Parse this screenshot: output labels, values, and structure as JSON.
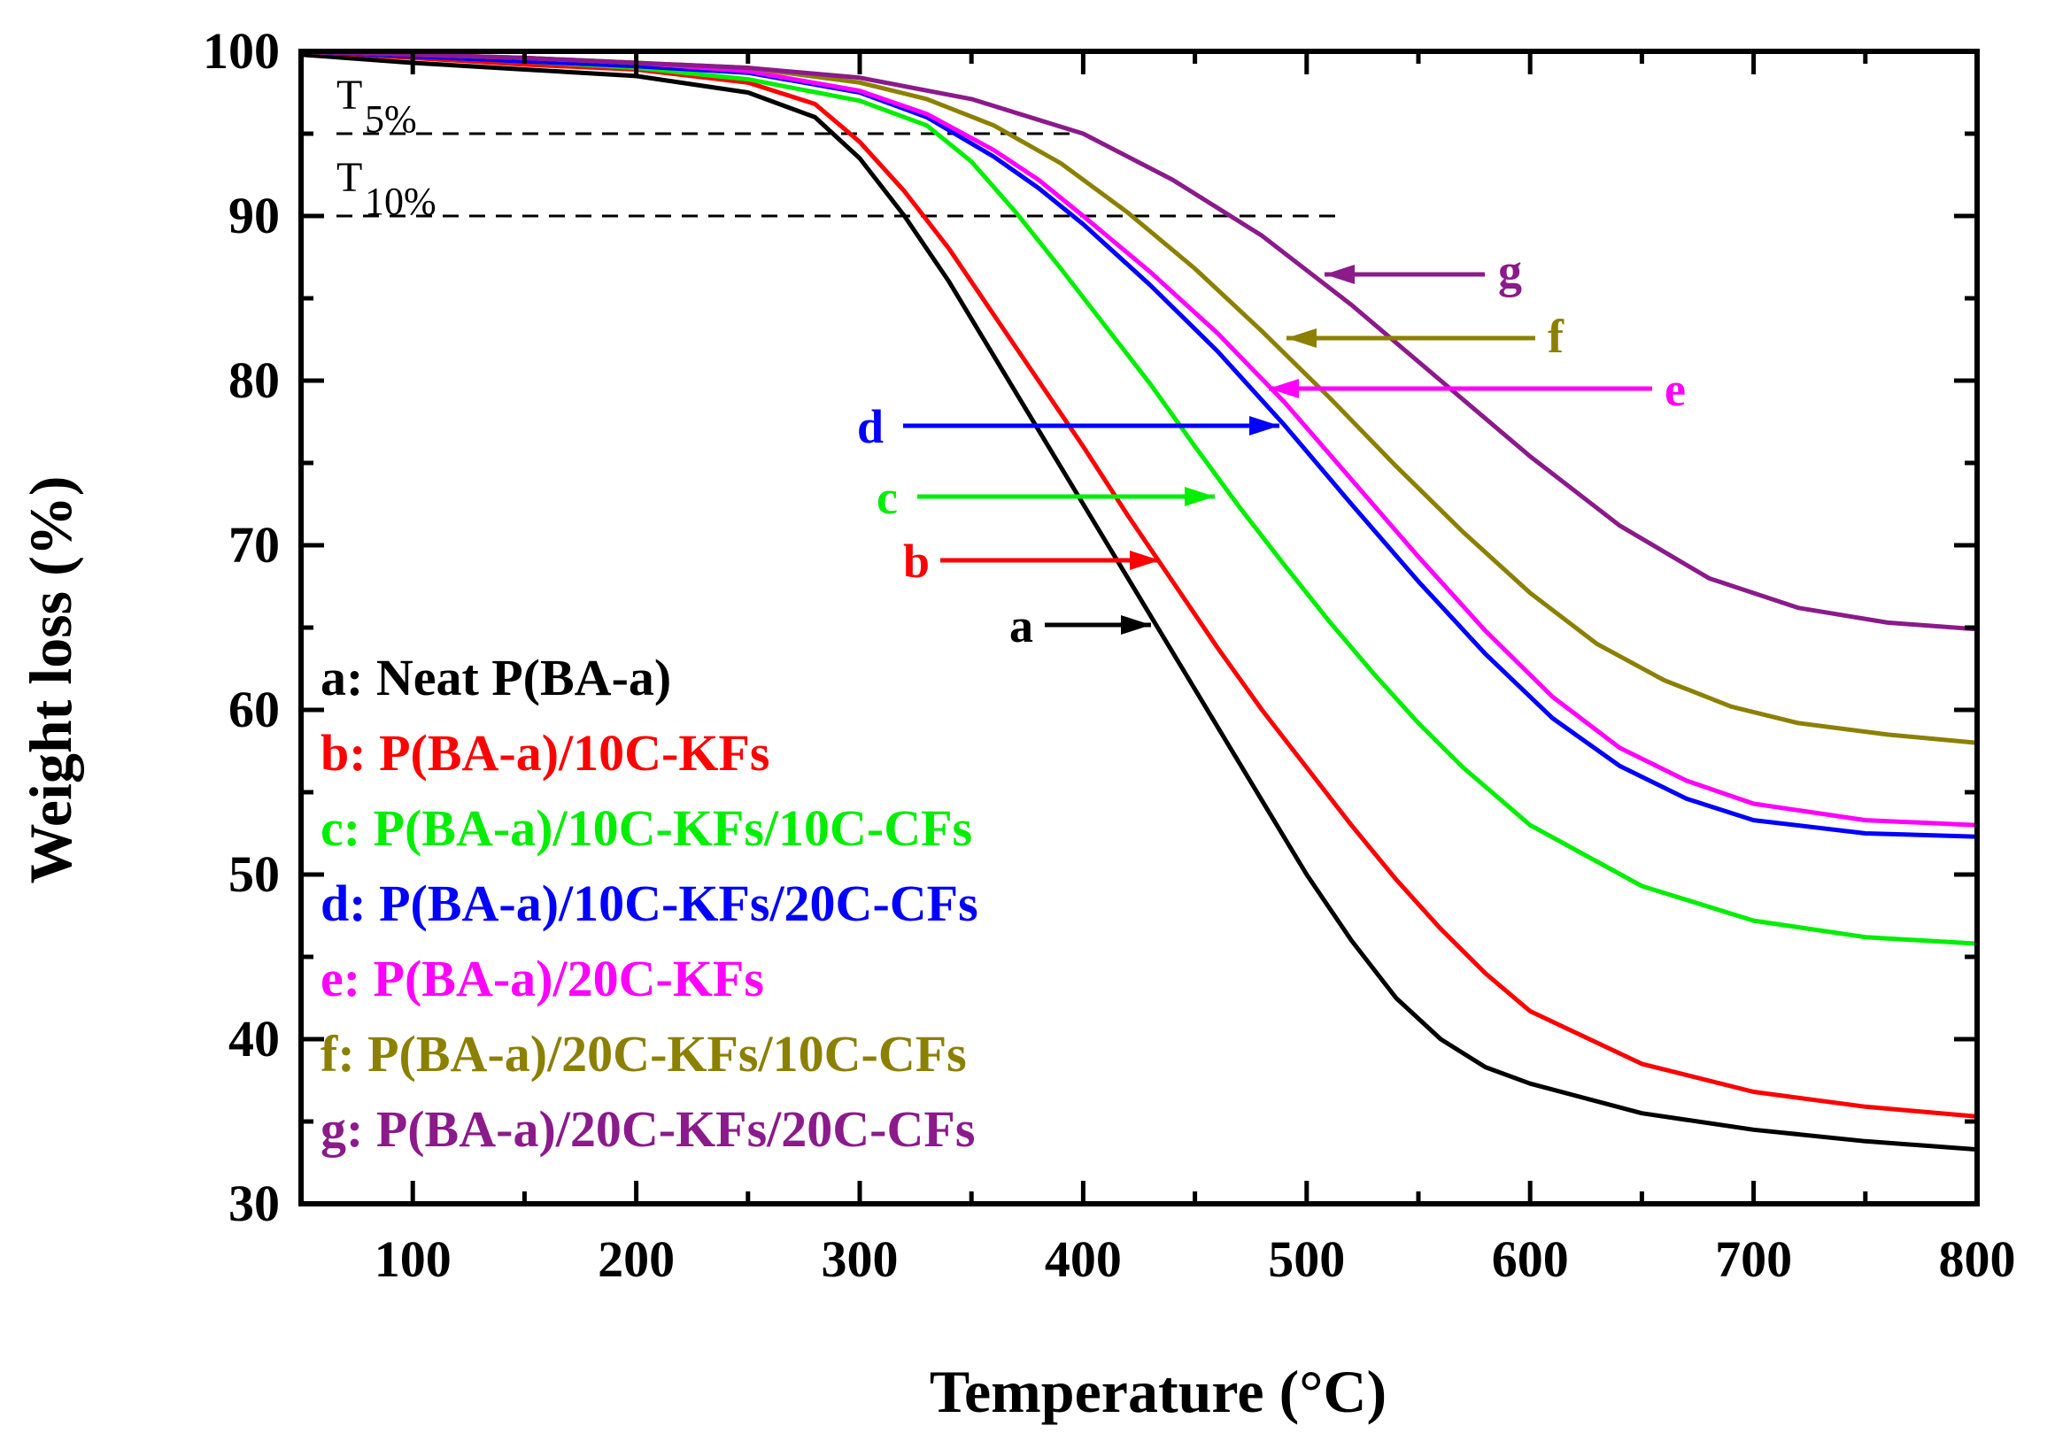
{
  "chart_data": {
    "type": "line",
    "xlabel": "Temperature (°C)",
    "ylabel": "Weight loss (%)",
    "xlim": [
      50,
      800
    ],
    "ylim": [
      30,
      100
    ],
    "xticks": [
      100,
      200,
      300,
      400,
      500,
      600,
      700,
      800
    ],
    "yticks": [
      30,
      40,
      50,
      60,
      70,
      80,
      90,
      100
    ],
    "threshold_lines": [
      {
        "label": "T",
        "sub": "5%",
        "value": 95,
        "x_end": 395
      },
      {
        "label": "T",
        "sub": "10%",
        "value": 90,
        "x_end": 515
      }
    ],
    "series": [
      {
        "key": "a",
        "name": "a: Neat P(BA-a)",
        "color": "#000000",
        "arrow_from": [
          10,
          64.5
        ],
        "arrow_to": [
          35,
          64.5
        ],
        "x": [
          50,
          100,
          150,
          200,
          250,
          280,
          300,
          320,
          340,
          360,
          380,
          400,
          420,
          440,
          460,
          480,
          500,
          520,
          540,
          560,
          580,
          600,
          650,
          700,
          750,
          800
        ],
        "y": [
          99.8,
          99.3,
          98.9,
          98.5,
          97.5,
          96.0,
          93.5,
          90.0,
          86.0,
          81.5,
          77.0,
          72.5,
          68.0,
          63.5,
          59.0,
          54.5,
          50.0,
          46.0,
          42.5,
          40.0,
          38.3,
          37.3,
          35.5,
          34.5,
          33.8,
          33.3
        ]
      },
      {
        "key": "b",
        "name": "b: P(BA-a)/10C-KFs",
        "color": "#ff0000",
        "arrow_from": [
          0,
          68.5
        ],
        "arrow_to": [
          35,
          68.5
        ],
        "x": [
          50,
          100,
          150,
          200,
          250,
          280,
          300,
          320,
          340,
          360,
          380,
          400,
          420,
          440,
          460,
          480,
          500,
          520,
          540,
          560,
          580,
          600,
          650,
          700,
          750,
          800
        ],
        "y": [
          100,
          99.6,
          99.2,
          98.9,
          98.1,
          96.8,
          94.5,
          91.5,
          88.0,
          84.0,
          80.0,
          76.0,
          71.8,
          67.8,
          63.8,
          60.0,
          56.5,
          53.0,
          49.7,
          46.7,
          44.0,
          41.7,
          38.5,
          36.8,
          35.9,
          35.3
        ]
      },
      {
        "key": "c",
        "name": "c: P(BA-a)/10C-KFs/10C-CFs",
        "color": "#00ee00",
        "arrow_from": [
          0,
          72.5
        ],
        "arrow_to": [
          35,
          72.5
        ],
        "x": [
          50,
          100,
          150,
          200,
          250,
          300,
          330,
          350,
          370,
          390,
          410,
          430,
          450,
          470,
          490,
          510,
          530,
          550,
          570,
          600,
          650,
          700,
          750,
          800
        ],
        "y": [
          100,
          99.7,
          99.4,
          99.0,
          98.3,
          97.0,
          95.5,
          93.3,
          90.2,
          86.8,
          83.3,
          79.8,
          76.0,
          72.3,
          68.8,
          65.4,
          62.2,
          59.2,
          56.5,
          53.0,
          49.3,
          47.2,
          46.2,
          45.8
        ]
      },
      {
        "key": "d",
        "name": "d: P(BA-a)/10C-KFs/20C-CFs",
        "color": "#0000ff",
        "arrow_from": [
          0,
          77.3
        ],
        "arrow_to": [
          35,
          77.3
        ],
        "x": [
          50,
          100,
          150,
          200,
          250,
          300,
          330,
          360,
          380,
          400,
          430,
          460,
          490,
          520,
          550,
          580,
          610,
          640,
          670,
          700,
          750,
          800
        ],
        "y": [
          100,
          99.7,
          99.4,
          99.1,
          98.7,
          97.5,
          96.0,
          93.6,
          91.7,
          89.5,
          85.8,
          81.8,
          77.3,
          72.5,
          67.8,
          63.4,
          59.5,
          56.6,
          54.6,
          53.3,
          52.5,
          52.3
        ]
      },
      {
        "key": "e",
        "name": "e: P(BA-a)/20C-KFs",
        "color": "#ff00ff",
        "arrow_from": [
          0,
          79.5
        ],
        "arrow_to": [
          -35,
          79.5
        ],
        "x": [
          50,
          100,
          150,
          200,
          250,
          300,
          330,
          360,
          380,
          400,
          430,
          460,
          490,
          520,
          550,
          580,
          610,
          640,
          670,
          700,
          750,
          800
        ],
        "y": [
          100,
          99.8,
          99.6,
          99.3,
          98.8,
          97.6,
          96.2,
          94.0,
          92.2,
          90.0,
          86.6,
          82.9,
          78.7,
          74.0,
          69.3,
          64.8,
          60.8,
          57.7,
          55.7,
          54.3,
          53.3,
          53.0
        ]
      },
      {
        "key": "f",
        "name": "f: P(BA-a)/20C-KFs/10C-CFs",
        "color": "#8c8000",
        "arrow_from": [
          0,
          82.5
        ],
        "arrow_to": [
          -35,
          82.5
        ],
        "x": [
          50,
          100,
          150,
          200,
          250,
          300,
          330,
          360,
          390,
          420,
          450,
          480,
          510,
          540,
          570,
          600,
          630,
          660,
          690,
          720,
          760,
          800
        ],
        "y": [
          100,
          99.8,
          99.6,
          99.3,
          99.0,
          98.1,
          97.1,
          95.5,
          93.2,
          90.2,
          86.8,
          83.0,
          79.0,
          74.8,
          70.8,
          67.1,
          64.0,
          61.8,
          60.2,
          59.2,
          58.5,
          58.0
        ]
      },
      {
        "key": "g",
        "name": "g: P(BA-a)/20C-KFs/20C-CFs",
        "color": "#8b1a8b",
        "arrow_from": [
          0,
          86.4
        ],
        "arrow_to": [
          -35,
          86.4
        ],
        "x": [
          50,
          100,
          150,
          200,
          250,
          300,
          350,
          400,
          440,
          480,
          520,
          560,
          600,
          640,
          680,
          720,
          760,
          800
        ],
        "y": [
          100,
          99.8,
          99.6,
          99.3,
          99.0,
          98.4,
          97.1,
          95.0,
          92.2,
          88.8,
          84.6,
          80.0,
          75.4,
          71.2,
          68.0,
          66.2,
          65.3,
          64.9
        ]
      }
    ],
    "annotation_positions": {
      "a": {
        "text_x": 0,
        "text_y": 0
      },
      "b": {
        "text_x": 0,
        "text_y": 0
      }
    }
  }
}
